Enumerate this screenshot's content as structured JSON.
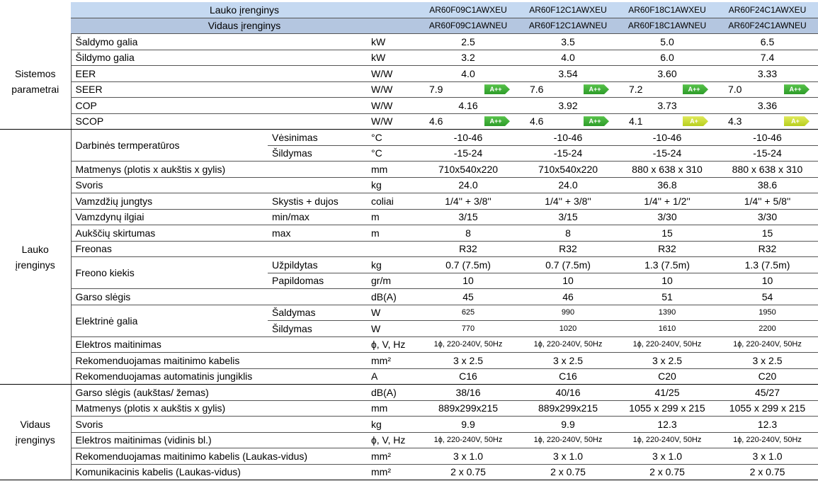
{
  "header": {
    "rows": [
      {
        "label": "Lauko įrenginys",
        "models": [
          "AR60F09C1AWXEU",
          "AR60F12C1AWXEU",
          "AR60F18C1AWXEU",
          "AR60F24C1AWXEU"
        ]
      },
      {
        "label": "Vidaus įrenginys",
        "models": [
          "AR60F09C1AWNEU",
          "AR60F12C1AWNEU",
          "AR60F18C1AWNEU",
          "AR60F24C1AWNEU"
        ]
      }
    ]
  },
  "sections": [
    {
      "group": "Sistemos parametrai",
      "rows": [
        {
          "param": "Šaldymo galia",
          "unit": "kW",
          "values": [
            "2.5",
            "3.5",
            "5.0",
            "6.5"
          ]
        },
        {
          "param": "Šildymo galia",
          "unit": "kW",
          "values": [
            "3.2",
            "4.0",
            "6.0",
            "7.4"
          ]
        },
        {
          "param": "EER",
          "unit": "W/W",
          "values": [
            "4.0",
            "3.54",
            "3.60",
            "3.33"
          ]
        },
        {
          "param": "SEER",
          "unit": "W/W",
          "values": [
            {
              "value": "7.9",
              "class": "A++"
            },
            {
              "value": "7.6",
              "class": "A++"
            },
            {
              "value": "7.2",
              "class": "A++"
            },
            {
              "value": "7.0",
              "class": "A++"
            }
          ]
        },
        {
          "param": "COP",
          "unit": "W/W",
          "values": [
            "4.16",
            "3.92",
            "3.73",
            "3.36"
          ]
        },
        {
          "param": "SCOP",
          "unit": "W/W",
          "values": [
            {
              "value": "4.6",
              "class": "A++"
            },
            {
              "value": "4.6",
              "class": "A++"
            },
            {
              "value": "4.1",
              "class": "A+"
            },
            {
              "value": "4.3",
              "class": "A+"
            }
          ]
        }
      ]
    },
    {
      "group": "Lauko įrenginys",
      "rows": [
        {
          "param": "Darbinės termperatūros",
          "subrows": [
            {
              "sub": "Vėsinimas",
              "unit": "°C",
              "values": [
                "-10-46",
                "-10-46",
                "-10-46",
                "-10-46"
              ]
            },
            {
              "sub": "Šildymas",
              "unit": "°C",
              "values": [
                "-15-24",
                "-15-24",
                "-15-24",
                "-15-24"
              ]
            }
          ]
        },
        {
          "param": "Matmenys (plotis x aukštis x gylis)",
          "unit": "mm",
          "values": [
            "710x540x220",
            "710x540x220",
            "880 x 638 x 310",
            "880 x 638 x 310"
          ]
        },
        {
          "param": "Svoris",
          "unit": "kg",
          "values": [
            "24.0",
            "24.0",
            "36.8",
            "38.6"
          ]
        },
        {
          "param": "Vamzdžių jungtys",
          "sub": "Skystis + dujos",
          "unit": "coliai",
          "values": [
            "1/4'' + 3/8''",
            "1/4'' + 3/8''",
            "1/4'' + 1/2''",
            "1/4'' + 5/8''"
          ]
        },
        {
          "param": "Vamzdynų ilgiai",
          "sub": "min/max",
          "unit": "m",
          "values": [
            "3/15",
            "3/15",
            "3/30",
            "3/30"
          ]
        },
        {
          "param": "Aukščių skirtumas",
          "sub": "max",
          "unit": "m",
          "values": [
            "8",
            "8",
            "15",
            "15"
          ]
        },
        {
          "param": "Freonas",
          "values": [
            "R32",
            "R32",
            "R32",
            "R32"
          ]
        },
        {
          "param": "Freono kiekis",
          "subrows": [
            {
              "sub": "Užpildytas",
              "unit": "kg",
              "values": [
                "0.7 (7.5m)",
                "0.7 (7.5m)",
                "1.3 (7.5m)",
                "1.3 (7.5m)"
              ]
            },
            {
              "sub": "Papildomas",
              "unit": "gr/m",
              "values": [
                "10",
                "10",
                "10",
                "10"
              ]
            }
          ]
        },
        {
          "param": "Garso slėgis",
          "unit": "dB(A)",
          "values": [
            "45",
            "46",
            "51",
            "54"
          ]
        },
        {
          "param": "Elektrinė galia",
          "small_text": true,
          "subrows": [
            {
              "sub": "Šaldymas",
              "unit": "W",
              "values": [
                "625",
                "990",
                "1390",
                "1950"
              ]
            },
            {
              "sub": "Šildymas",
              "unit": "W",
              "values": [
                "770",
                "1020",
                "1610",
                "2200"
              ]
            }
          ]
        },
        {
          "param": "Elektros maitinimas",
          "unit": "ɸ, V, Hz",
          "small_text": true,
          "values": [
            "1ɸ, 220-240V, 50Hz",
            "1ɸ, 220-240V, 50Hz",
            "1ɸ, 220-240V, 50Hz",
            "1ɸ, 220-240V, 50Hz"
          ]
        },
        {
          "param": "Rekomenduojamas maitinimo kabelis",
          "unit": "mm²",
          "values": [
            "3 x 2.5",
            "3 x 2.5",
            "3 x 2.5",
            "3 x 2.5"
          ]
        },
        {
          "param": "Rekomenduojamas automatinis jungiklis",
          "unit": "A",
          "values": [
            "C16",
            "C16",
            "C20",
            "C20"
          ]
        }
      ]
    },
    {
      "group": "Vidaus įrenginys",
      "rows": [
        {
          "param": "Garso slėgis (aukštas/ žemas)",
          "unit": "dB(A)",
          "values": [
            "38/16",
            "40/16",
            "41/25",
            "45/27"
          ]
        },
        {
          "param": "Matmenys (plotis x aukštis x gylis)",
          "unit": "mm",
          "values": [
            "889x299x215",
            "889x299x215",
            "1055 x 299 x 215",
            "1055 x 299 x 215"
          ]
        },
        {
          "param": "Svoris",
          "unit": "kg",
          "values": [
            "9.9",
            "9.9",
            "12.3",
            "12.3"
          ]
        },
        {
          "param": "Elektros maitinimas (vidinis bl.)",
          "unit": "ɸ, V, Hz",
          "small_text": true,
          "values": [
            "1ɸ, 220-240V, 50Hz",
            "1ɸ, 220-240V, 50Hz",
            "1ɸ, 220-240V, 50Hz",
            "1ɸ, 220-240V, 50Hz"
          ]
        },
        {
          "param": "Rekomenduojamas maitinimo kabelis (Laukas-vidus)",
          "unit": "mm²",
          "values": [
            "3 x 1.0",
            "3 x 1.0",
            "3 x 1.0",
            "3 x 1.0"
          ]
        },
        {
          "param": "Komunikacinis kabelis (Laukas-vidus)",
          "unit": "mm²",
          "values": [
            "2 x 0.75",
            "2 x 0.75",
            "2 x 0.75",
            "2 x 0.75"
          ]
        }
      ]
    }
  ]
}
